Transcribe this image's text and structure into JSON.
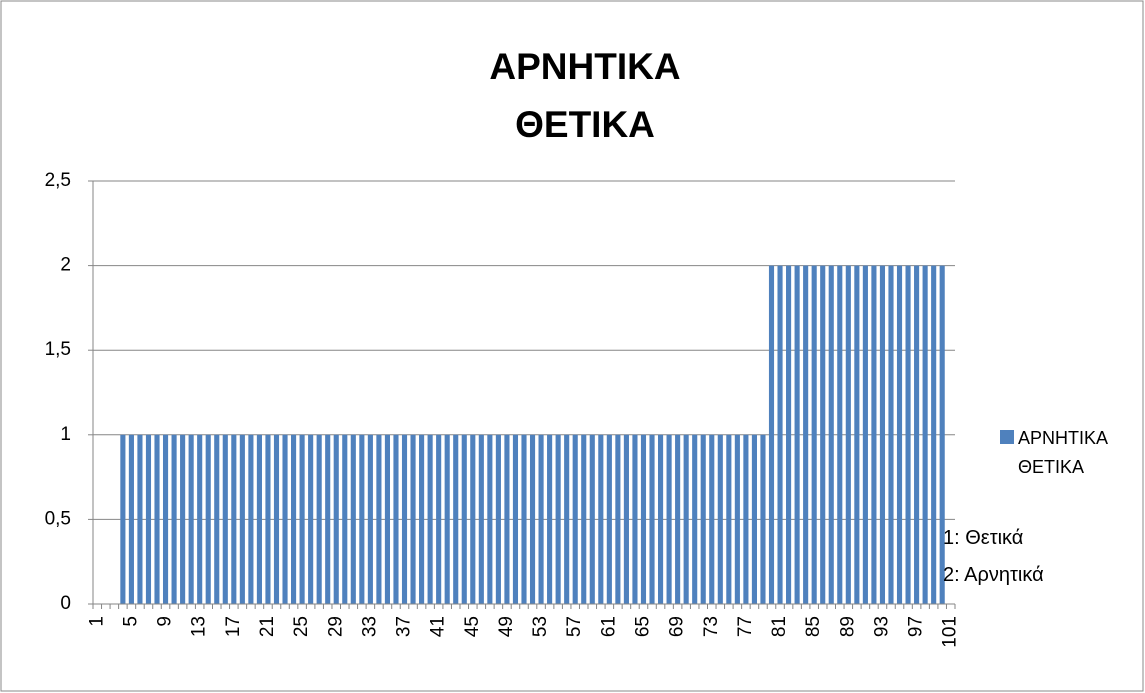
{
  "chart_data": {
    "type": "bar",
    "title": "ΑΡΝΗΤΙΚΑ ΘΕΤΙΚΑ",
    "annotations": [
      "1: Θετικά",
      "2: Αρνητικά"
    ],
    "categories": [
      1,
      null,
      null,
      null,
      5,
      null,
      null,
      null,
      9,
      null,
      null,
      null,
      13,
      null,
      null,
      null,
      17,
      null,
      null,
      null,
      21,
      null,
      null,
      null,
      25,
      null,
      null,
      null,
      29,
      null,
      null,
      null,
      33,
      null,
      null,
      null,
      37,
      null,
      null,
      null,
      41,
      null,
      null,
      null,
      45,
      null,
      null,
      null,
      49,
      null,
      null,
      null,
      53,
      null,
      null,
      null,
      57,
      null,
      null,
      null,
      61,
      null,
      null,
      null,
      65,
      null,
      null,
      null,
      69,
      null,
      null,
      null,
      73,
      null,
      null,
      null,
      77,
      null,
      null,
      null,
      81,
      null,
      null,
      null,
      85,
      null,
      null,
      null,
      89,
      null,
      null,
      null,
      93,
      null,
      null,
      null,
      97,
      null,
      null,
      null,
      101
    ],
    "series": [
      {
        "name": "ΑΡΝΗΤΙΚΑ ΘΕΤΙΚΑ",
        "color": "#4f81bd",
        "values": [
          null,
          null,
          null,
          1,
          1,
          1,
          1,
          1,
          1,
          1,
          1,
          1,
          1,
          1,
          1,
          1,
          1,
          1,
          1,
          1,
          1,
          1,
          1,
          1,
          1,
          1,
          1,
          1,
          1,
          1,
          1,
          1,
          1,
          1,
          1,
          1,
          1,
          1,
          1,
          1,
          1,
          1,
          1,
          1,
          1,
          1,
          1,
          1,
          1,
          1,
          1,
          1,
          1,
          1,
          1,
          1,
          1,
          1,
          1,
          1,
          1,
          1,
          1,
          1,
          1,
          1,
          1,
          1,
          1,
          1,
          1,
          1,
          1,
          1,
          1,
          1,
          1,
          1,
          1,
          2,
          2,
          2,
          2,
          2,
          2,
          2,
          2,
          2,
          2,
          2,
          2,
          2,
          2,
          2,
          2,
          2,
          2,
          2,
          2,
          2,
          null
        ]
      }
    ],
    "ylim": [
      0,
      2.5
    ],
    "yticks": [
      0,
      {
        "value": 0.5,
        "label": "0,5"
      },
      1,
      {
        "value": 1.5,
        "label": "1,5"
      },
      2,
      {
        "value": 2.5,
        "label": "2,5"
      }
    ],
    "grid": true,
    "legend": "right"
  }
}
